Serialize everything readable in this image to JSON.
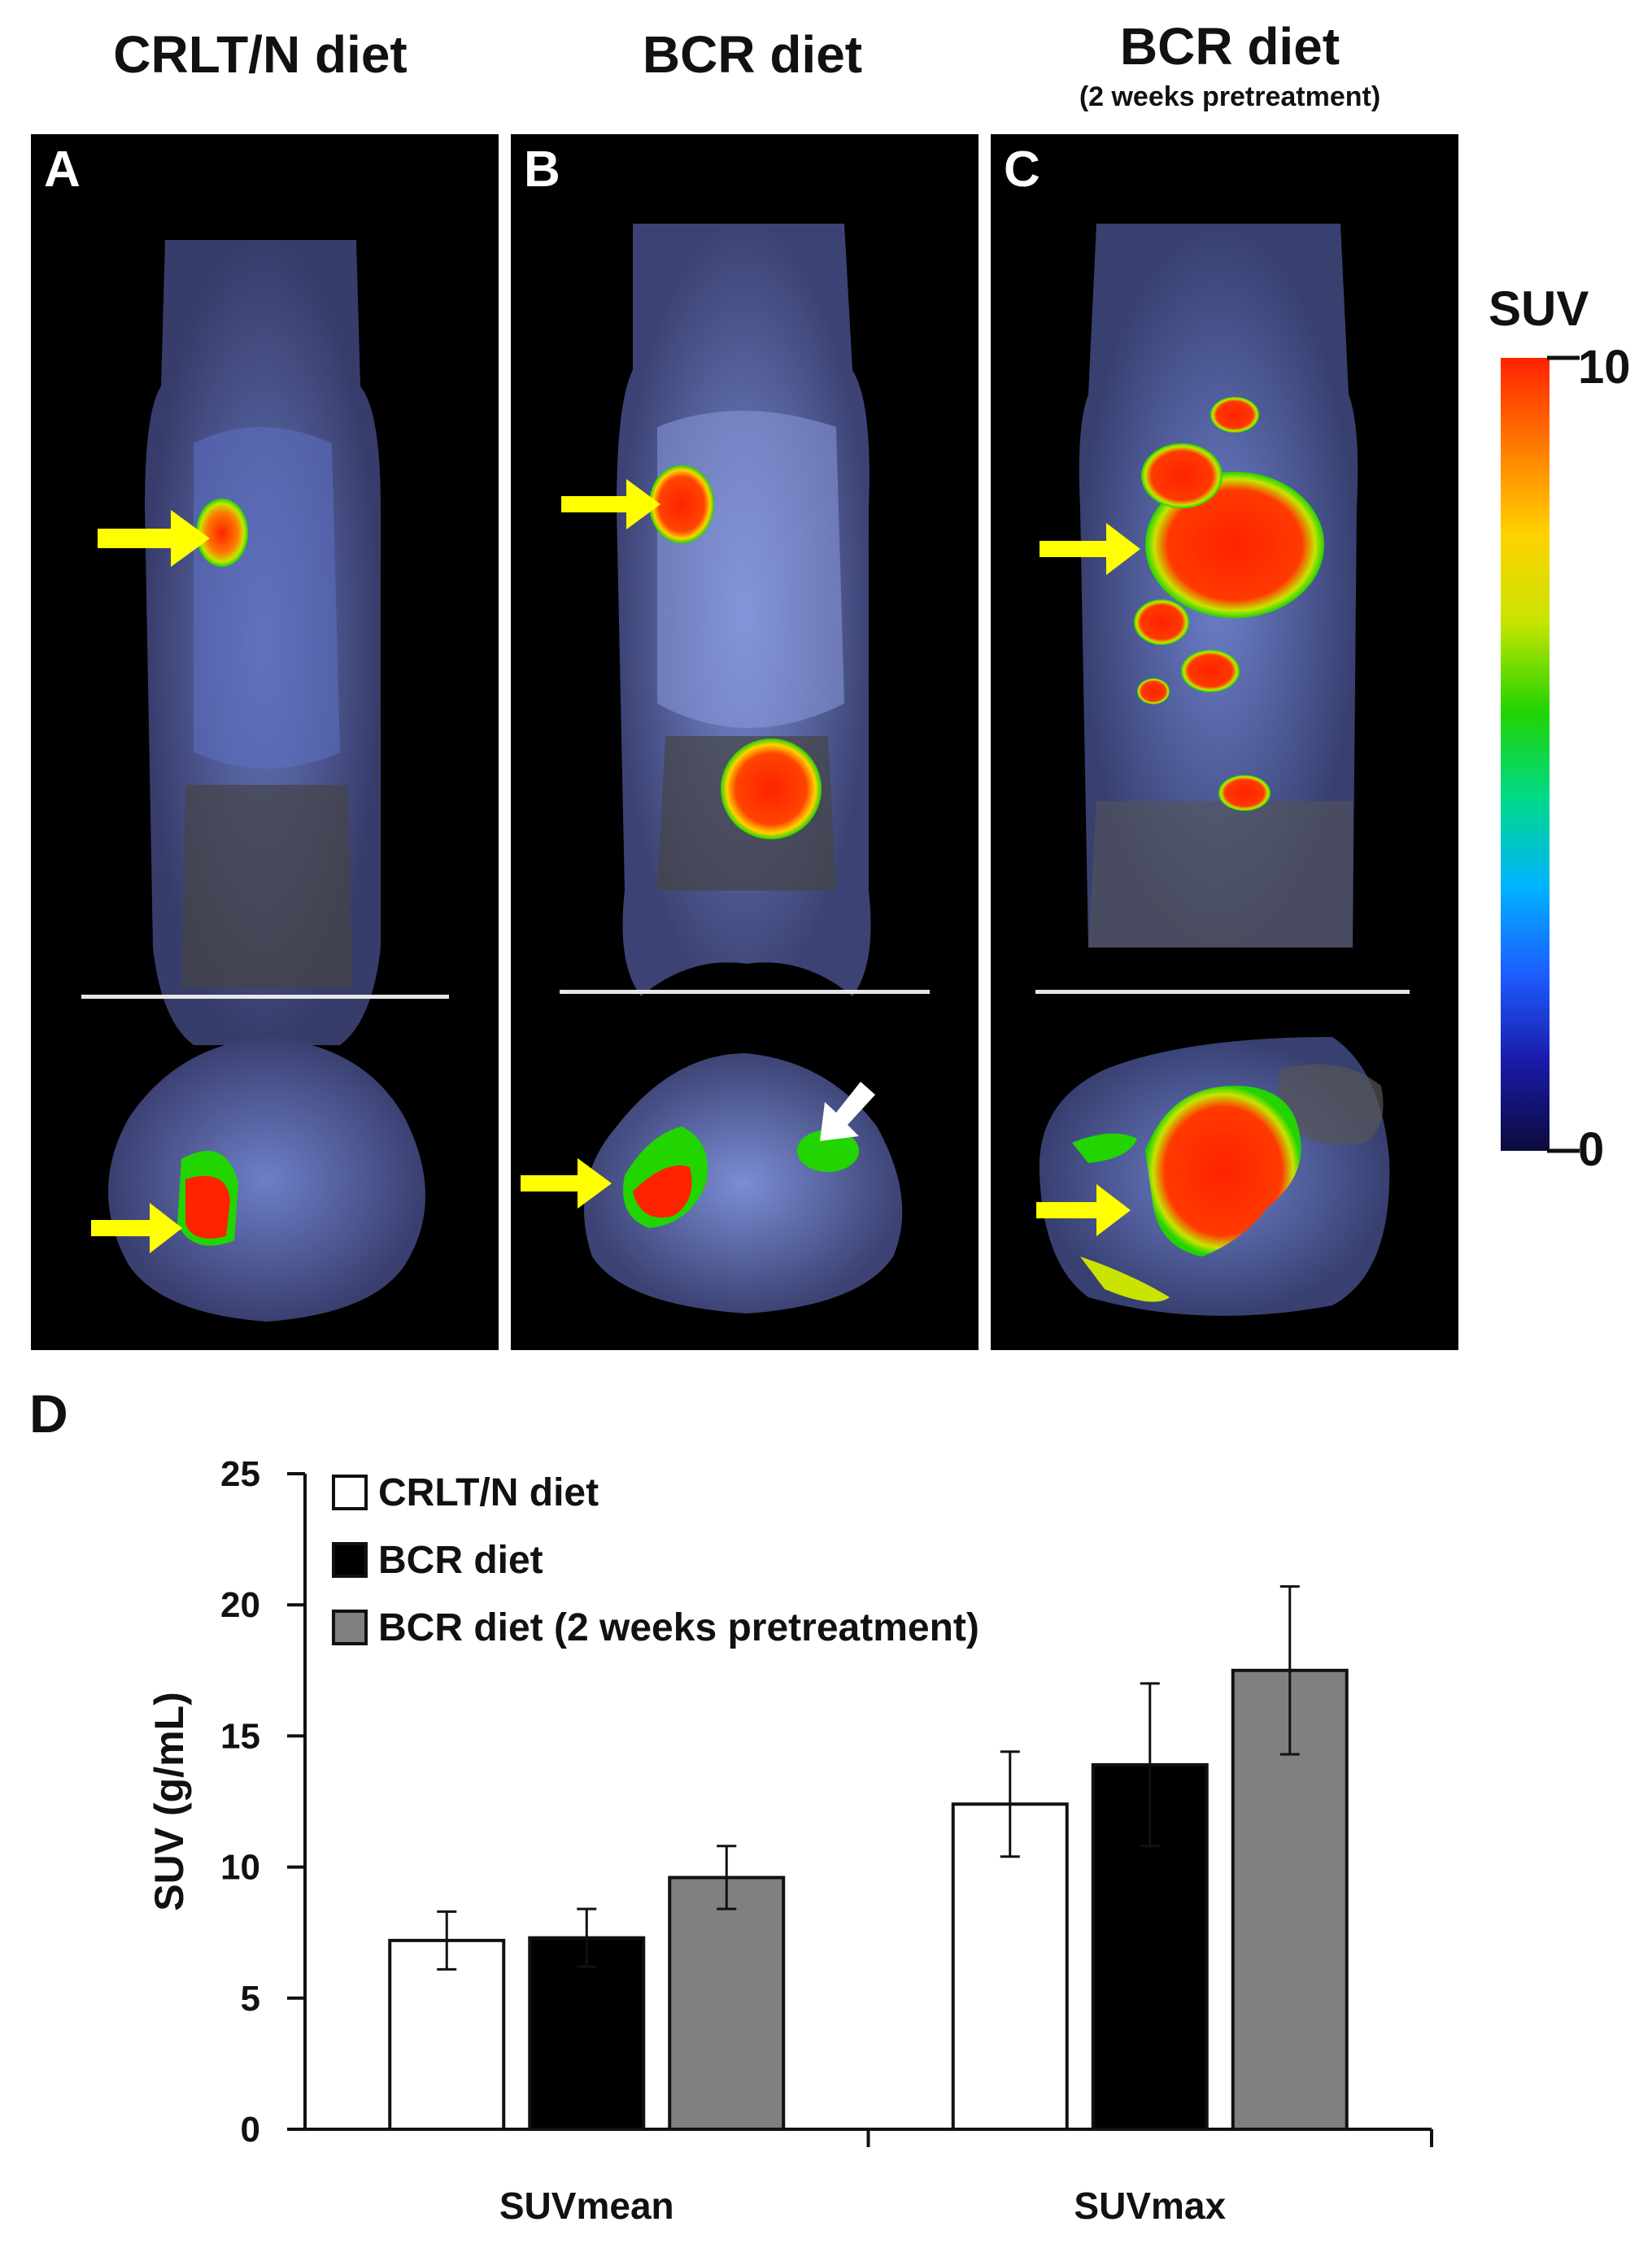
{
  "columns": [
    {
      "title": "CRLT/N diet",
      "subtitle": "",
      "panel_label": "A"
    },
    {
      "title": "BCR diet",
      "subtitle": "",
      "panel_label": "B"
    },
    {
      "title": "BCR diet",
      "subtitle": "(2 weeks pretreatment)",
      "panel_label": "C"
    }
  ],
  "colorbar": {
    "title": "SUV",
    "max_label": "10",
    "min_label": "0",
    "stops": [
      "#0b0b3a",
      "#1a1aa8",
      "#1d5cff",
      "#00b3ff",
      "#00d98a",
      "#22d400",
      "#c8e400",
      "#ffd200",
      "#ff7a00",
      "#ff2200"
    ]
  },
  "colors": {
    "arrow": "#ffff00",
    "arrow_secondary": "#ffffff",
    "bar_white": "#ffffff",
    "bar_black": "#000000",
    "bar_gray": "#808080"
  },
  "panel_d_label": "D",
  "chart_data": {
    "type": "bar",
    "categories": [
      "SUVmean",
      "SUVmax"
    ],
    "series": [
      {
        "name": "CRLT/N diet",
        "color": "#ffffff",
        "values": [
          7.2,
          12.4
        ],
        "errors": [
          1.1,
          2.0
        ]
      },
      {
        "name": "BCR diet",
        "color": "#000000",
        "values": [
          7.3,
          13.9
        ],
        "errors": [
          1.1,
          3.1
        ]
      },
      {
        "name": "BCR diet (2 weeks pretreatment)",
        "color": "#808080",
        "values": [
          9.6,
          17.5
        ],
        "errors": [
          1.2,
          3.2
        ]
      }
    ],
    "ylabel": "SUV (g/mL)",
    "xlabel": "",
    "ylim": [
      0,
      25
    ],
    "yticks": [
      0,
      5,
      10,
      15,
      20,
      25
    ],
    "ytick_labels": [
      "0",
      "5",
      "10",
      "15",
      "20",
      "25"
    ],
    "legend_position": "top-left",
    "grid": false
  }
}
